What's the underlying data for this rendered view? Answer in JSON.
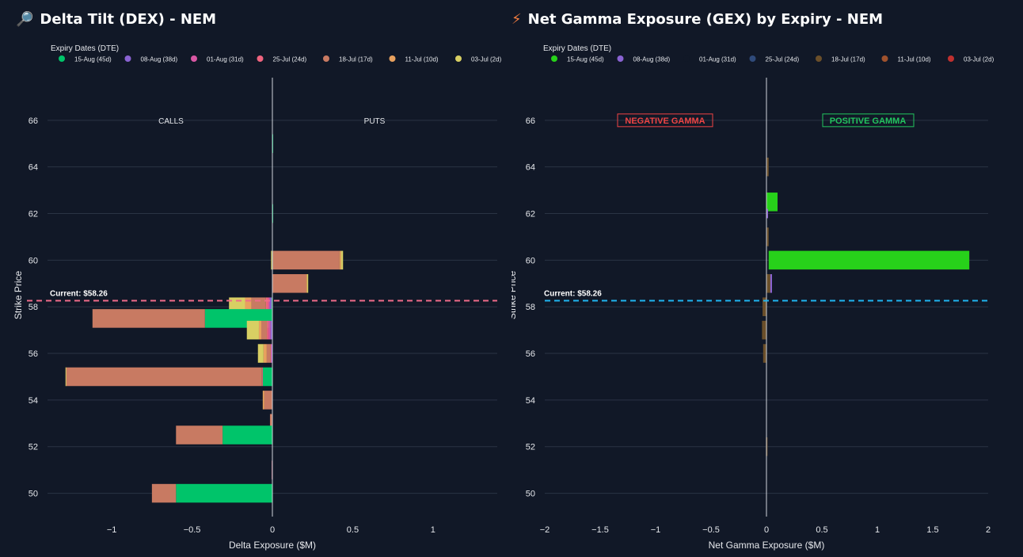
{
  "colors": {
    "background": "#111827",
    "grid": "#2a3344",
    "axis_text": "#e5e7eb",
    "current_dex": "#f06b8a",
    "current_gex": "#1fb5f0",
    "negative_gamma": "#ef4444",
    "positive_gamma": "#22c55e"
  },
  "chart_data": [
    {
      "type": "bar",
      "orientation": "horizontal",
      "stacked": true,
      "title": "Delta Tilt (DEX) - NEM",
      "title_icon": "🔎",
      "title_icon_name": "magnifier-icon",
      "xlabel": "Delta Exposure ($M)",
      "ylabel": "Strike Price",
      "xlim": [
        -1.4,
        1.4
      ],
      "ylim": [
        49,
        68
      ],
      "xticks": [
        -1,
        -0.5,
        0,
        0.5,
        1
      ],
      "xtick_labels": [
        "−1",
        "−0.5",
        "0",
        "0.5",
        "1"
      ],
      "yticks": [
        50,
        52,
        54,
        56,
        58,
        60,
        62,
        64,
        66
      ],
      "yticks_labels": [
        "50",
        "52",
        "54",
        "56",
        "58",
        "60",
        "62",
        "64",
        "66"
      ],
      "legend_title": "Expiry Dates (DTE)",
      "legend_position": "top-left",
      "annotations": {
        "left": "CALLS",
        "right": "PUTS"
      },
      "current_label": "Current: $58.26",
      "current_price": 58.26,
      "bar_height": 0.8,
      "series": [
        {
          "name": "15-Aug (45d)",
          "color": "#00c46a"
        },
        {
          "name": "08-Aug (38d)",
          "color": "#8a63d2"
        },
        {
          "name": "01-Aug (31d)",
          "color": "#d957a4"
        },
        {
          "name": "25-Jul (24d)",
          "color": "#f0647f"
        },
        {
          "name": "18-Jul (17d)",
          "color": "#c87a62"
        },
        {
          "name": "11-Jul (10d)",
          "color": "#e8a15e"
        },
        {
          "name": "03-Jul (2d)",
          "color": "#d8cf63"
        }
      ],
      "stacks": [
        {
          "strike": 65,
          "pos": [
            0.003,
            0,
            0,
            0,
            0,
            0,
            0
          ],
          "neg": [
            0,
            0,
            0,
            0,
            0,
            0,
            0
          ]
        },
        {
          "strike": 62,
          "pos": [
            0.002,
            0,
            0,
            0,
            0,
            0,
            0
          ],
          "neg": [
            0,
            0,
            0,
            0,
            0,
            0,
            0
          ]
        },
        {
          "strike": 60,
          "pos": [
            0.003,
            0,
            0,
            0,
            0.415,
            0.01,
            0.012
          ],
          "neg": [
            0,
            0,
            0,
            0,
            0,
            0,
            -0.008
          ]
        },
        {
          "strike": 59,
          "pos": [
            0,
            0,
            0,
            0,
            0.21,
            0.006,
            0.007
          ],
          "neg": [
            0,
            0,
            0,
            0,
            0,
            0,
            0
          ]
        },
        {
          "strike": 58,
          "pos": [
            0,
            0,
            0,
            0,
            0,
            0,
            0
          ],
          "neg": [
            -0.005,
            -0.012,
            -0.008,
            -0.015,
            -0.09,
            -0.04,
            -0.1
          ]
        },
        {
          "strike": 57.5,
          "pos": [
            0,
            0,
            0,
            0,
            0,
            0,
            0
          ],
          "neg": [
            -0.42,
            0,
            0,
            0,
            -0.7,
            0,
            0
          ]
        },
        {
          "strike": 57,
          "pos": [
            0,
            0,
            0,
            0,
            0,
            0,
            0
          ],
          "neg": [
            0,
            -0.012,
            -0.012,
            -0.01,
            -0.035,
            -0.015,
            -0.075
          ]
        },
        {
          "strike": 56,
          "pos": [
            0,
            0,
            0,
            0,
            0,
            0,
            0
          ],
          "neg": [
            0,
            -0.005,
            -0.005,
            0,
            -0.025,
            -0.02,
            -0.035
          ]
        },
        {
          "strike": 55,
          "pos": [
            0,
            0,
            0,
            0,
            0,
            0,
            0
          ],
          "neg": [
            -0.06,
            0,
            0,
            -0.005,
            -1.22,
            0,
            -0.003
          ]
        },
        {
          "strike": 54,
          "pos": [
            0,
            0,
            0,
            0,
            0,
            0,
            0
          ],
          "neg": [
            0,
            0,
            0,
            0,
            -0.05,
            -0.01,
            0
          ]
        },
        {
          "strike": 53,
          "pos": [
            0,
            0,
            0,
            0,
            0,
            0,
            0
          ],
          "neg": [
            0,
            0,
            0,
            0,
            -0.015,
            0,
            0
          ]
        },
        {
          "strike": 52.5,
          "pos": [
            0,
            0,
            0,
            0,
            0,
            0,
            0
          ],
          "neg": [
            -0.31,
            0,
            0,
            0,
            -0.29,
            0,
            0
          ]
        },
        {
          "strike": 51,
          "pos": [
            0,
            0,
            0,
            0,
            0,
            0,
            0
          ],
          "neg": [
            0,
            0,
            0,
            -0.004,
            0,
            0,
            0
          ]
        },
        {
          "strike": 50,
          "pos": [
            0,
            0,
            0,
            0,
            0,
            0,
            0
          ],
          "neg": [
            -0.6,
            0,
            0,
            0,
            -0.15,
            0,
            0
          ]
        }
      ]
    },
    {
      "type": "bar",
      "orientation": "horizontal",
      "stacked": false,
      "title": "Net Gamma Exposure (GEX) by Expiry - NEM",
      "title_icon": "⚡",
      "title_icon_name": "lightning-icon",
      "xlabel": "Net Gamma Exposure ($M)",
      "ylabel": "Strike Price",
      "xlim": [
        -2,
        2
      ],
      "ylim": [
        49,
        68
      ],
      "xticks": [
        -2,
        -1.5,
        -1,
        -0.5,
        0,
        0.5,
        1,
        1.5,
        2
      ],
      "xtick_labels": [
        "−2",
        "−1.5",
        "−1",
        "−0.5",
        "0",
        "0.5",
        "1",
        "1.5",
        "2"
      ],
      "yticks": [
        50,
        52,
        54,
        56,
        58,
        60,
        62,
        64,
        66
      ],
      "yticks_labels": [
        "50",
        "52",
        "54",
        "56",
        "58",
        "60",
        "62",
        "64",
        "66"
      ],
      "legend_title": "Expiry Dates (DTE)",
      "legend_position": "top-left",
      "annotations": {
        "left": "NEGATIVE GAMMA",
        "right": "POSITIVE GAMMA"
      },
      "current_label": "Current: $58.26",
      "current_price": 58.26,
      "series": [
        {
          "name": "15-Aug (45d)",
          "color": "#27d11a"
        },
        {
          "name": "08-Aug (38d)",
          "color": "#8a63d2"
        },
        {
          "name": "01-Aug (31d)",
          "color": "#111827"
        },
        {
          "name": "25-Jul (24d)",
          "color": "#2f4a7a"
        },
        {
          "name": "18-Jul (17d)",
          "color": "#6b4f2a"
        },
        {
          "name": "11-Jul (10d)",
          "color": "#a0522d"
        },
        {
          "name": "03-Jul (2d)",
          "color": "#c0302f"
        }
      ],
      "bars": [
        {
          "strike": 64,
          "series": 4,
          "x0": 0,
          "x1": 0.02,
          "h": 0.8
        },
        {
          "strike": 62.5,
          "series": 0,
          "x0": 0,
          "x1": 0.1,
          "h": 0.8
        },
        {
          "strike": 62,
          "series": 1,
          "x0": 0,
          "x1": 0.01,
          "h": 0.4
        },
        {
          "strike": 61,
          "series": 4,
          "x0": 0,
          "x1": 0.02,
          "h": 0.8
        },
        {
          "strike": 60,
          "series": 0,
          "x0": 0.02,
          "x1": 1.83,
          "h": 0.8
        },
        {
          "strike": 59,
          "series": 4,
          "x0": 0,
          "x1": 0.04,
          "h": 0.8
        },
        {
          "strike": 59,
          "series": 1,
          "x0": 0.035,
          "x1": 0.05,
          "h": 0.8
        },
        {
          "strike": 58,
          "series": 4,
          "x0": -0.035,
          "x1": 0,
          "h": 0.8
        },
        {
          "strike": 57,
          "series": 4,
          "x0": -0.04,
          "x1": 0,
          "h": 0.8
        },
        {
          "strike": 56,
          "series": 4,
          "x0": -0.03,
          "x1": 0,
          "h": 0.8
        },
        {
          "strike": 52,
          "series": 4,
          "x0": -0.005,
          "x1": 0,
          "h": 0.8
        }
      ]
    }
  ]
}
